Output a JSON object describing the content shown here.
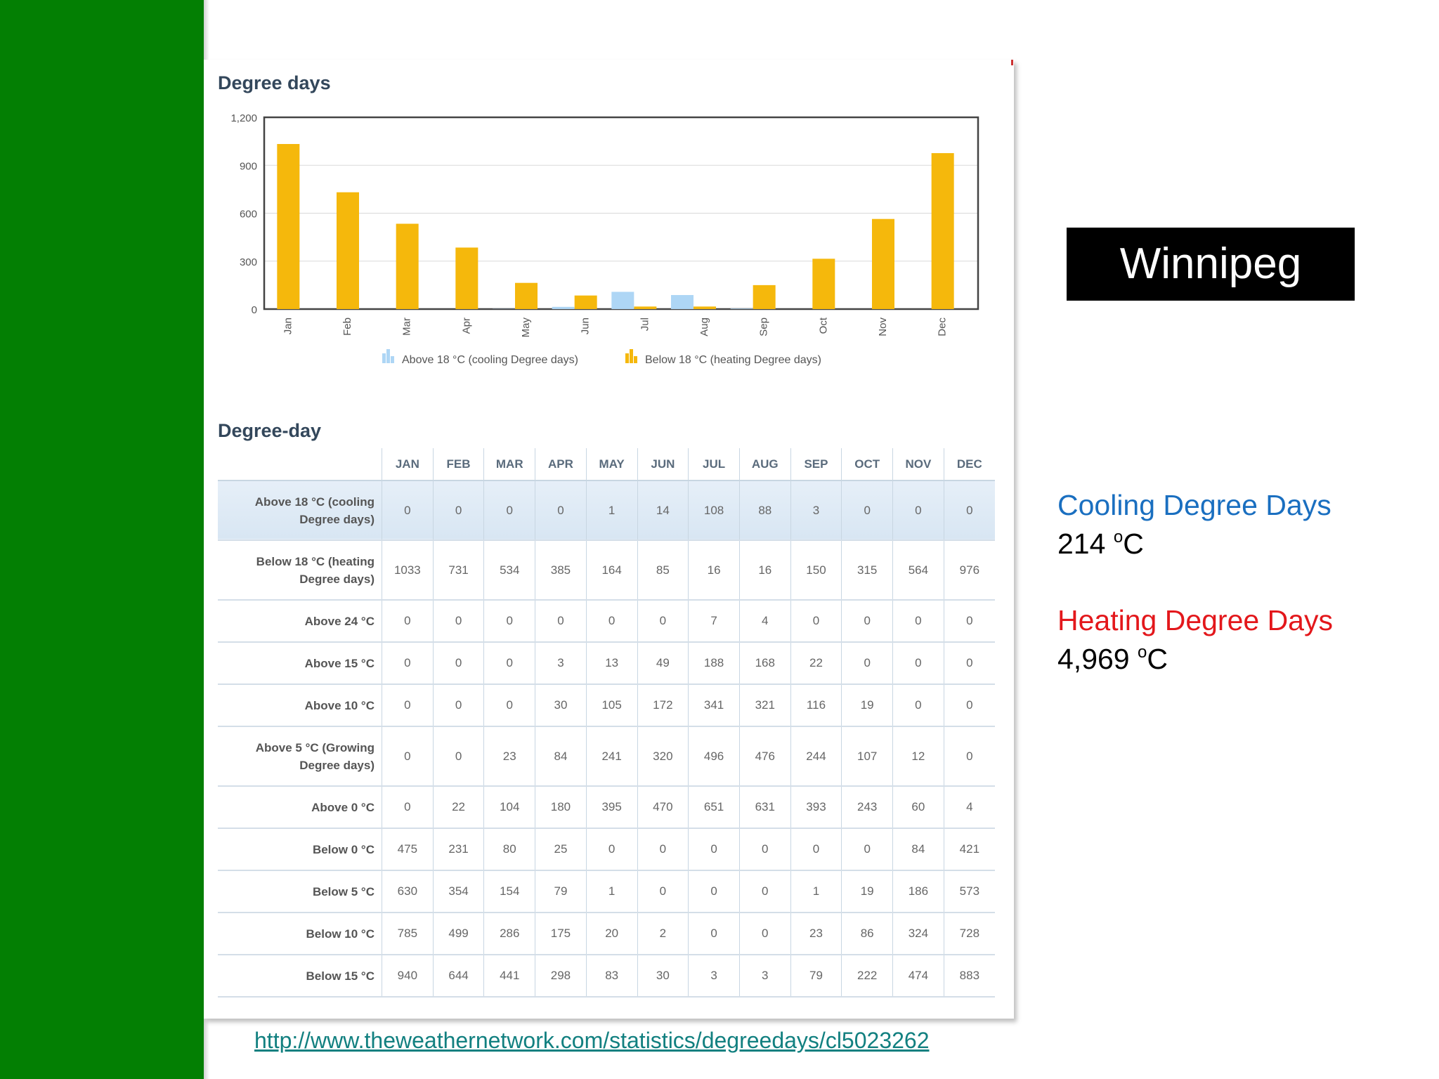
{
  "slide": {
    "city": "Winnipeg",
    "cooling_label": "Cooling Degree Days",
    "cooling_value": "214",
    "heating_label": "Heating Degree Days",
    "heating_value": "4,969",
    "unit_sup": "o",
    "unit": "C",
    "source_url": "http://www.theweathernetwork.com/statistics/degreedays/cl5023262",
    "colors": {
      "green_bar": "#037f03",
      "cooling": "#1a6fc0",
      "heating": "#e3171b"
    }
  },
  "chart_data": {
    "type": "bar",
    "title": "Degree days",
    "categories": [
      "Jan",
      "Feb",
      "Mar",
      "Apr",
      "May",
      "Jun",
      "Jul",
      "Aug",
      "Sep",
      "Oct",
      "Nov",
      "Dec"
    ],
    "series": [
      {
        "name": "Above 18 °C (cooling Degree days)",
        "color": "#aed6f5",
        "values": [
          0,
          0,
          0,
          0,
          1,
          14,
          108,
          88,
          3,
          0,
          0,
          0
        ]
      },
      {
        "name": "Below 18 °C (heating Degree days)",
        "color": "#f5b80c",
        "values": [
          1033,
          731,
          534,
          385,
          164,
          85,
          16,
          16,
          150,
          315,
          564,
          976
        ]
      }
    ],
    "yticks": [
      "1,200",
      "900",
      "600",
      "300",
      "0"
    ],
    "ytick_values": [
      1200,
      900,
      600,
      300,
      0
    ],
    "ylim": [
      0,
      1200
    ],
    "grid": true,
    "legend": "bottom"
  },
  "table": {
    "title": "Degree-day",
    "columns": [
      "JAN",
      "FEB",
      "MAR",
      "APR",
      "MAY",
      "JUN",
      "JUL",
      "AUG",
      "SEP",
      "OCT",
      "NOV",
      "DEC"
    ],
    "rows": [
      {
        "label": [
          "Above 18 °C (cooling",
          "Degree days)"
        ],
        "values": [
          "0",
          "0",
          "0",
          "0",
          "1",
          "14",
          "108",
          "88",
          "3",
          "0",
          "0",
          "0"
        ]
      },
      {
        "label": [
          "Below 18 °C (heating",
          "Degree days)"
        ],
        "values": [
          "1033",
          "731",
          "534",
          "385",
          "164",
          "85",
          "16",
          "16",
          "150",
          "315",
          "564",
          "976"
        ]
      },
      {
        "label": [
          "Above 24 °C"
        ],
        "values": [
          "0",
          "0",
          "0",
          "0",
          "0",
          "0",
          "7",
          "4",
          "0",
          "0",
          "0",
          "0"
        ]
      },
      {
        "label": [
          "Above 15 °C"
        ],
        "values": [
          "0",
          "0",
          "0",
          "3",
          "13",
          "49",
          "188",
          "168",
          "22",
          "0",
          "0",
          "0"
        ]
      },
      {
        "label": [
          "Above 10 °C"
        ],
        "values": [
          "0",
          "0",
          "0",
          "30",
          "105",
          "172",
          "341",
          "321",
          "116",
          "19",
          "0",
          "0"
        ]
      },
      {
        "label": [
          "Above 5 °C (Growing",
          "Degree days)"
        ],
        "values": [
          "0",
          "0",
          "23",
          "84",
          "241",
          "320",
          "496",
          "476",
          "244",
          "107",
          "12",
          "0"
        ]
      },
      {
        "label": [
          "Above 0 °C"
        ],
        "values": [
          "0",
          "22",
          "104",
          "180",
          "395",
          "470",
          "651",
          "631",
          "393",
          "243",
          "60",
          "4"
        ]
      },
      {
        "label": [
          "Below 0 °C"
        ],
        "values": [
          "475",
          "231",
          "80",
          "25",
          "0",
          "0",
          "0",
          "0",
          "0",
          "0",
          "84",
          "421"
        ]
      },
      {
        "label": [
          "Below 5 °C"
        ],
        "values": [
          "630",
          "354",
          "154",
          "79",
          "1",
          "0",
          "0",
          "0",
          "1",
          "19",
          "186",
          "573"
        ]
      },
      {
        "label": [
          "Below 10 °C"
        ],
        "values": [
          "785",
          "499",
          "286",
          "175",
          "20",
          "2",
          "0",
          "0",
          "23",
          "86",
          "324",
          "728"
        ]
      },
      {
        "label": [
          "Below 15 °C"
        ],
        "values": [
          "940",
          "644",
          "441",
          "298",
          "83",
          "30",
          "3",
          "3",
          "79",
          "222",
          "474",
          "883"
        ]
      }
    ]
  }
}
